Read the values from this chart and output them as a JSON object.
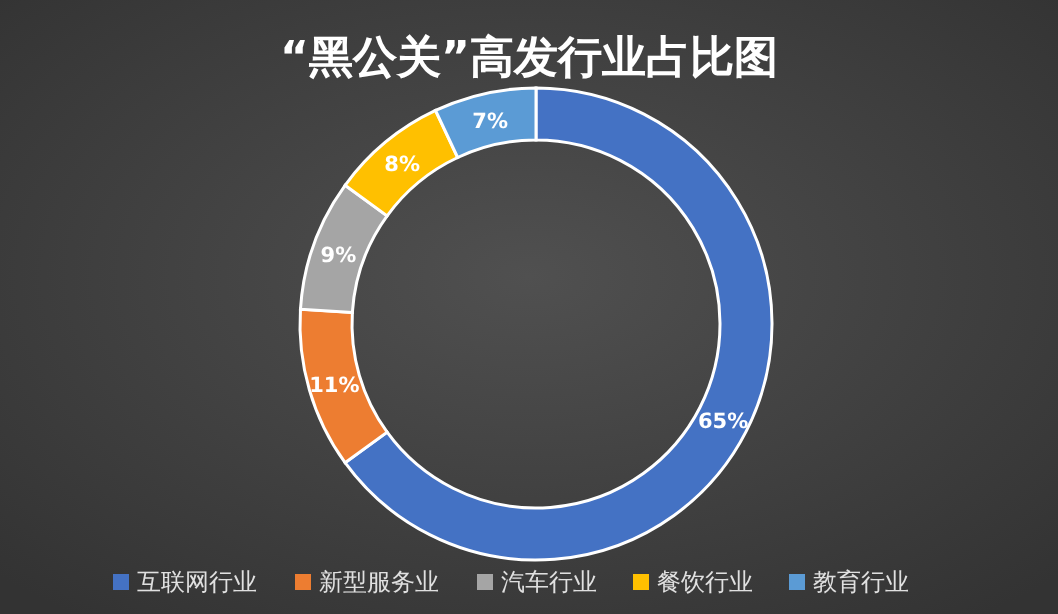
{
  "chart_data": {
    "type": "donut",
    "title": "“黑公关”高发行业占比图",
    "categories": [
      "互联网行业",
      "新型服务业",
      "汽车行业",
      "餐饮行业",
      "教育行业"
    ],
    "values": [
      65,
      11,
      9,
      8,
      7
    ],
    "colors": [
      "#4472c4",
      "#ed7d31",
      "#a5a5a5",
      "#ffc000",
      "#5b9bd5"
    ],
    "value_labels": [
      "65%",
      "11%",
      "9%",
      "8%",
      "7%"
    ],
    "legend": "bottom"
  }
}
